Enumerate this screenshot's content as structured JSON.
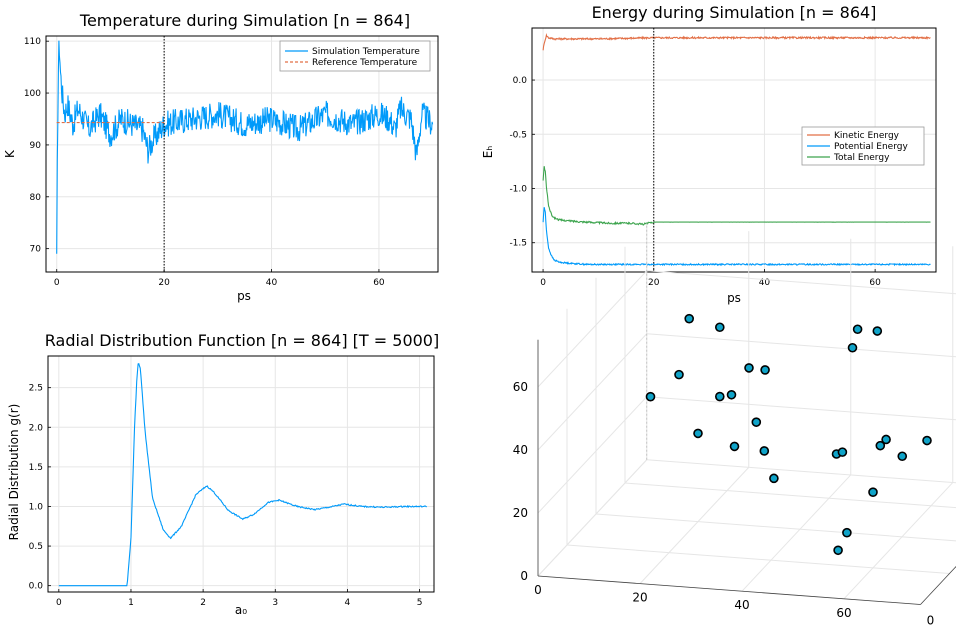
{
  "colors": {
    "blue": "#009AFA",
    "orange": "#E26F46",
    "green": "#3DA44E",
    "atom_fill": "#0FA3C8"
  },
  "chart_data": [
    {
      "id": "temperature",
      "type": "line",
      "title": "Temperature during Simulation [n = 864]",
      "xlabel": "ps",
      "ylabel": "K",
      "xlim": [
        -2,
        71
      ],
      "ylim": [
        65.5,
        111
      ],
      "xticks": [
        0,
        20,
        40,
        60
      ],
      "yticks": [
        70,
        80,
        90,
        100,
        110
      ],
      "vline": 20,
      "grid": true,
      "legend_position": "top-right",
      "series": [
        {
          "name": "Simulation Temperature",
          "color": "#009AFA",
          "x": [
            0,
            0.1,
            0.2,
            0.3,
            0.4,
            0.5,
            0.7,
            1,
            1.5,
            2,
            3,
            4,
            6,
            8,
            10,
            12,
            14,
            16,
            17,
            18,
            20,
            25,
            30,
            35,
            40,
            45,
            50,
            55,
            60,
            62,
            63,
            64,
            66,
            67,
            68,
            70
          ],
          "y": [
            67,
            85,
            96,
            105,
            108,
            109,
            104,
            100,
            96,
            98,
            94,
            97,
            93,
            96,
            92,
            95,
            94,
            93,
            89,
            91,
            94,
            95,
            96,
            94,
            95,
            93,
            96,
            94,
            96,
            95,
            93,
            97,
            95,
            88,
            96,
            94
          ],
          "noise": 2.6
        },
        {
          "name": "Reference Temperature",
          "color": "#E26F46",
          "style": "dashed",
          "x": [
            0,
            20
          ],
          "y": [
            94.3,
            94.3
          ]
        }
      ]
    },
    {
      "id": "energy",
      "type": "line",
      "title": "Energy during Simulation [n = 864]",
      "xlabel": "ps",
      "ylabel": "Eₕ",
      "xlim": [
        -2,
        71
      ],
      "ylim": [
        -1.77,
        0.48
      ],
      "xticks": [
        0,
        20,
        40,
        60
      ],
      "yticks": [
        0.0,
        -0.5,
        -1.0,
        -1.5
      ],
      "ytick_labels": [
        "0.0",
        "-0.5",
        "-1.0",
        "-1.5"
      ],
      "vline": 20,
      "grid": true,
      "legend_position": "right",
      "series": [
        {
          "name": "Kinetic Energy",
          "color": "#E26F46",
          "x": [
            0,
            0.3,
            0.6,
            1,
            2,
            5,
            10,
            20,
            40,
            60,
            70
          ],
          "y": [
            0.28,
            0.36,
            0.41,
            0.39,
            0.38,
            0.38,
            0.38,
            0.39,
            0.39,
            0.39,
            0.39
          ],
          "noise": 0.008
        },
        {
          "name": "Potential Energy",
          "color": "#009AFA",
          "x": [
            0,
            0.2,
            0.4,
            0.6,
            1,
            1.5,
            2,
            3,
            5,
            8,
            12,
            20,
            40,
            60,
            70
          ],
          "y": [
            -1.31,
            -1.17,
            -1.22,
            -1.38,
            -1.55,
            -1.62,
            -1.66,
            -1.68,
            -1.69,
            -1.7,
            -1.7,
            -1.7,
            -1.7,
            -1.7,
            -1.7
          ],
          "noise": 0.006
        },
        {
          "name": "Total Energy",
          "color": "#3DA44E",
          "x": [
            0,
            0.2,
            0.4,
            0.6,
            1,
            1.5,
            2,
            3,
            5,
            8,
            12,
            16,
            18,
            20,
            20.2,
            70
          ],
          "y": [
            -0.93,
            -0.8,
            -0.84,
            -0.98,
            -1.16,
            -1.24,
            -1.27,
            -1.29,
            -1.3,
            -1.31,
            -1.32,
            -1.32,
            -1.33,
            -1.31,
            -1.31,
            -1.31
          ],
          "noise": 0.008,
          "noise_until": 20
        }
      ]
    },
    {
      "id": "rdf",
      "type": "line",
      "title": "Radial Distribution Function [n = 864] [T = 5000]",
      "xlabel": "a₀",
      "ylabel": "Radial Distribution g(r)",
      "xlim": [
        -0.15,
        5.2
      ],
      "ylim": [
        -0.08,
        2.9
      ],
      "xticks": [
        0,
        1,
        2,
        3,
        4,
        5
      ],
      "yticks": [
        0.0,
        0.5,
        1.0,
        1.5,
        2.0,
        2.5
      ],
      "ytick_labels": [
        "0.0",
        "0.5",
        "1.0",
        "1.5",
        "2.0",
        "2.5"
      ],
      "grid": true,
      "series": [
        {
          "name": "",
          "color": "#009AFA",
          "x": [
            0,
            0.9,
            0.95,
            1.0,
            1.05,
            1.08,
            1.1,
            1.13,
            1.2,
            1.3,
            1.45,
            1.55,
            1.7,
            1.9,
            2.05,
            2.15,
            2.35,
            2.55,
            2.7,
            2.9,
            3.05,
            3.3,
            3.55,
            3.8,
            3.95,
            4.2,
            4.5,
            4.8,
            5.1
          ],
          "y": [
            0,
            0,
            0.05,
            0.6,
            2.0,
            2.6,
            2.82,
            2.75,
            1.9,
            1.1,
            0.7,
            0.6,
            0.75,
            1.15,
            1.26,
            1.18,
            0.95,
            0.84,
            0.9,
            1.05,
            1.08,
            1.0,
            0.96,
            1.0,
            1.03,
            1.0,
            0.99,
            1.0,
            1.0
          ],
          "noise": 0.008
        }
      ]
    },
    {
      "id": "positions",
      "type": "scatter3d",
      "title": "",
      "xticks": [
        0,
        20,
        40,
        60
      ],
      "yticks": [
        0
      ],
      "zticks": [
        0,
        20,
        40,
        60
      ],
      "grid": true,
      "points": [
        {
          "x": 5,
          "y": 60,
          "z": 28
        },
        {
          "x": 16,
          "y": 48,
          "z": 60
        },
        {
          "x": 22,
          "y": 48,
          "z": 58
        },
        {
          "x": 14,
          "y": 48,
          "z": 42
        },
        {
          "x": 22,
          "y": 48,
          "z": 36
        },
        {
          "x": 26,
          "y": 42,
          "z": 40
        },
        {
          "x": 30,
          "y": 40,
          "z": 50
        },
        {
          "x": 32,
          "y": 38,
          "z": 34
        },
        {
          "x": 33,
          "y": 40,
          "z": 24
        },
        {
          "x": 20,
          "y": 40,
          "z": 28
        },
        {
          "x": 30,
          "y": 30,
          "z": 30
        },
        {
          "x": 40,
          "y": 22,
          "z": 25
        },
        {
          "x": 36,
          "y": 30,
          "z": 55
        },
        {
          "x": 50,
          "y": 30,
          "z": 30
        },
        {
          "x": 52,
          "y": 34,
          "z": 62
        },
        {
          "x": 53,
          "y": 34,
          "z": 68
        },
        {
          "x": 58,
          "y": 30,
          "z": 70
        },
        {
          "x": 54,
          "y": 20,
          "z": 36
        },
        {
          "x": 62,
          "y": 22,
          "z": 40
        },
        {
          "x": 60,
          "y": 20,
          "z": 24
        },
        {
          "x": 56,
          "y": 10,
          "z": 10
        },
        {
          "x": 60,
          "y": 2,
          "z": 20
        },
        {
          "x": 62,
          "y": 18,
          "z": 40
        },
        {
          "x": 74,
          "y": 8,
          "z": 48
        },
        {
          "x": 70,
          "y": 5,
          "z": 44
        }
      ]
    }
  ]
}
